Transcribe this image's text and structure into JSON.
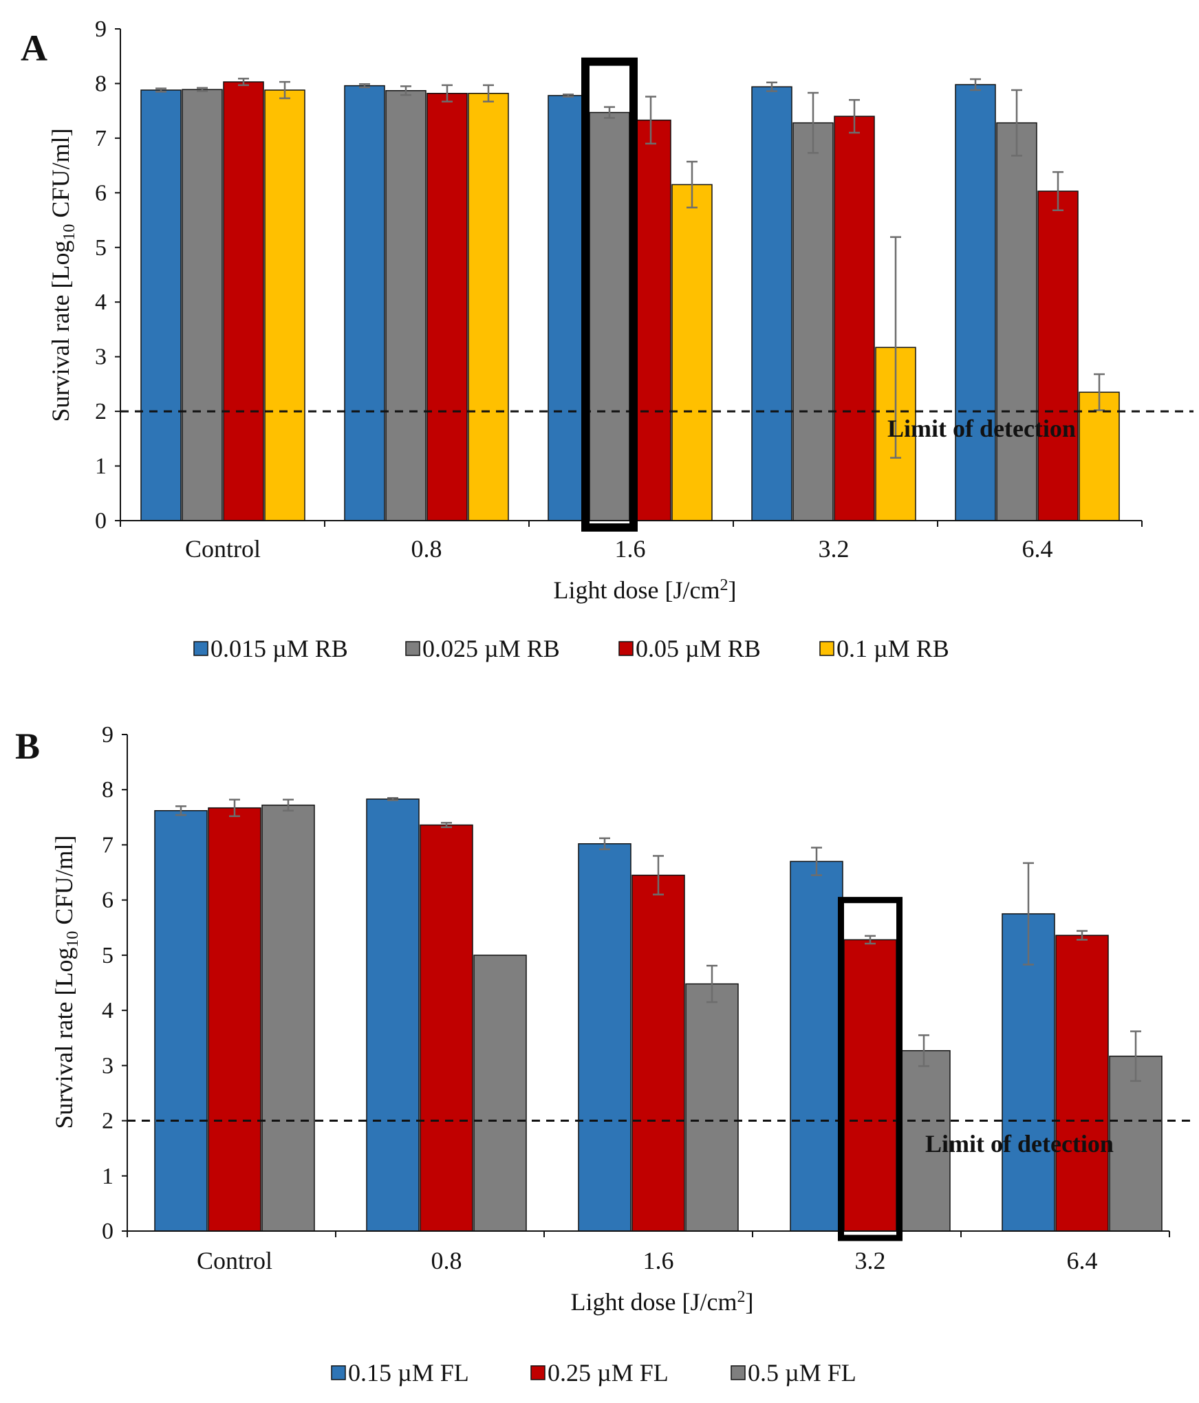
{
  "chart_data": [
    {
      "type": "bar",
      "panel_label": "A",
      "categories": [
        "Control",
        "0.8",
        "1.6",
        "3.2",
        "6.4"
      ],
      "series": [
        {
          "name": "0.015 µM RB",
          "color": "#2e75b6",
          "values": [
            7.88,
            7.96,
            7.78,
            7.94,
            7.98
          ],
          "errors": [
            0.03,
            0.03,
            0.02,
            0.08,
            0.1
          ]
        },
        {
          "name": "0.025 µM RB",
          "color": "#7f7f7f",
          "values": [
            7.89,
            7.87,
            7.47,
            7.28,
            7.28
          ],
          "errors": [
            0.03,
            0.08,
            0.1,
            0.55,
            0.6
          ]
        },
        {
          "name": "0.05 µM RB",
          "color": "#c00000",
          "values": [
            8.03,
            7.82,
            7.33,
            7.4,
            6.03
          ],
          "errors": [
            0.06,
            0.15,
            0.43,
            0.3,
            0.35
          ]
        },
        {
          "name": "0.1 µM RB",
          "color": "#ffc000",
          "values": [
            7.88,
            7.82,
            6.15,
            3.17,
            2.35
          ],
          "errors": [
            0.15,
            0.15,
            0.42,
            2.02,
            0.33
          ]
        }
      ],
      "ylabel": "Survival rate [Log10 CFU/ml]",
      "ylabel_main": "Survival rate [Log",
      "ylabel_sub": "10",
      "ylabel_tail": " CFU/ml]",
      "xlabel": "Light dose [J/cm2]",
      "xlabel_main": "Light dose [J/cm",
      "xlabel_sup": "2",
      "xlabel_tail": "]",
      "ylim": [
        0,
        9
      ],
      "yticks": [
        0,
        1,
        2,
        3,
        4,
        5,
        6,
        7,
        8,
        9
      ],
      "detection_limit": 2,
      "detection_label": "Limit of detection",
      "highlight": {
        "category": "1.6",
        "series": "0.025 µM RB",
        "top": 8.4
      },
      "legend_position": "bottom"
    },
    {
      "type": "bar",
      "panel_label": "B",
      "categories": [
        "Control",
        "0.8",
        "1.6",
        "3.2",
        "6.4"
      ],
      "series": [
        {
          "name": "0.15 µM FL",
          "color": "#2e75b6",
          "values": [
            7.62,
            7.83,
            7.02,
            6.7,
            5.75
          ],
          "errors": [
            0.08,
            0.02,
            0.1,
            0.25,
            0.92
          ]
        },
        {
          "name": "0.25 µM FL",
          "color": "#c00000",
          "values": [
            7.67,
            7.36,
            6.45,
            5.28,
            5.36
          ],
          "errors": [
            0.15,
            0.04,
            0.35,
            0.07,
            0.08
          ]
        },
        {
          "name": "0.5 µM FL",
          "color": "#7f7f7f",
          "values": [
            7.72,
            5.0,
            4.48,
            3.27,
            3.17
          ],
          "errors": [
            0.1,
            0.0,
            0.33,
            0.28,
            0.45
          ]
        }
      ],
      "ylabel": "Survival rate [Log10 CFU/ml]",
      "ylabel_main": "Survival rate [Log",
      "ylabel_sub": "10",
      "ylabel_tail": " CFU/ml]",
      "xlabel": "Light dose [J/cm2]",
      "xlabel_main": "Light dose [J/cm",
      "xlabel_sup": "2",
      "xlabel_tail": "]",
      "ylim": [
        0,
        9
      ],
      "yticks": [
        0,
        1,
        2,
        3,
        4,
        5,
        6,
        7,
        8,
        9
      ],
      "detection_limit": 2,
      "detection_label": "Limit of detection",
      "highlight": {
        "category": "3.2",
        "series": "0.25 µM FL",
        "top": 6.0
      },
      "legend_position": "bottom"
    }
  ]
}
